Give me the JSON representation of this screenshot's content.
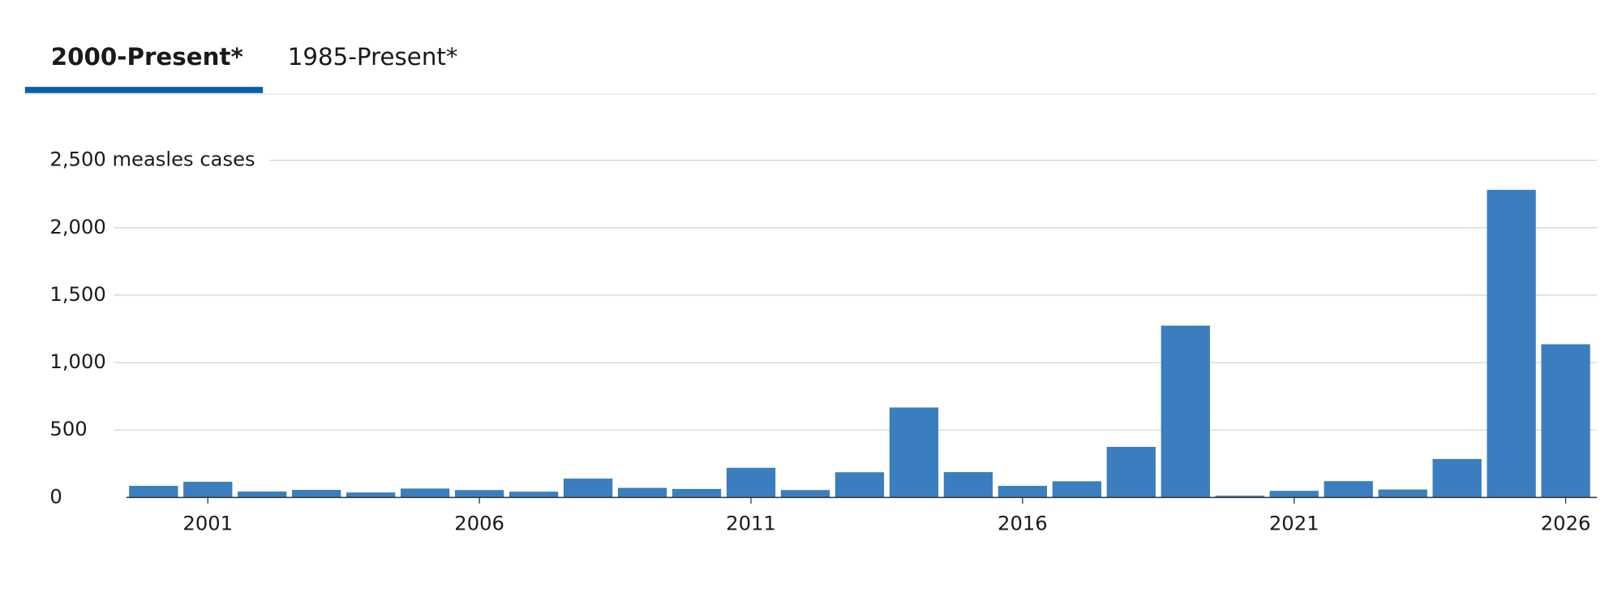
{
  "tabs": [
    "2000-Present*",
    "1985-Present*"
  ],
  "chart_data": {
    "type": "bar",
    "x": [
      2000,
      2001,
      2002,
      2003,
      2004,
      2005,
      2006,
      2007,
      2008,
      2009,
      2010,
      2011,
      2012,
      2013,
      2014,
      2015,
      2016,
      2017,
      2018,
      2019,
      2020,
      2021,
      2022,
      2023,
      2024,
      2025,
      2026
    ],
    "values": [
      86,
      116,
      44,
      56,
      37,
      66,
      55,
      43,
      140,
      71,
      63,
      220,
      55,
      187,
      667,
      188,
      86,
      120,
      375,
      1274,
      13,
      49,
      121,
      59,
      285,
      2281,
      1136
    ],
    "color": "#3a7ebf",
    "xlim": [
      1999.5,
      2026.5
    ],
    "xticks": [
      2001,
      2006,
      2011,
      2016,
      2021,
      2026
    ],
    "ylim": [
      0,
      2500
    ],
    "yticks": [
      0,
      500,
      {
        "value": 1000,
        "label": "1,000"
      },
      {
        "value": 1500,
        "label": "1,500"
      },
      {
        "value": 2000,
        "label": "2,000"
      },
      {
        "value": 2500,
        "label": "2,500 measles cases"
      }
    ],
    "grid": true
  }
}
